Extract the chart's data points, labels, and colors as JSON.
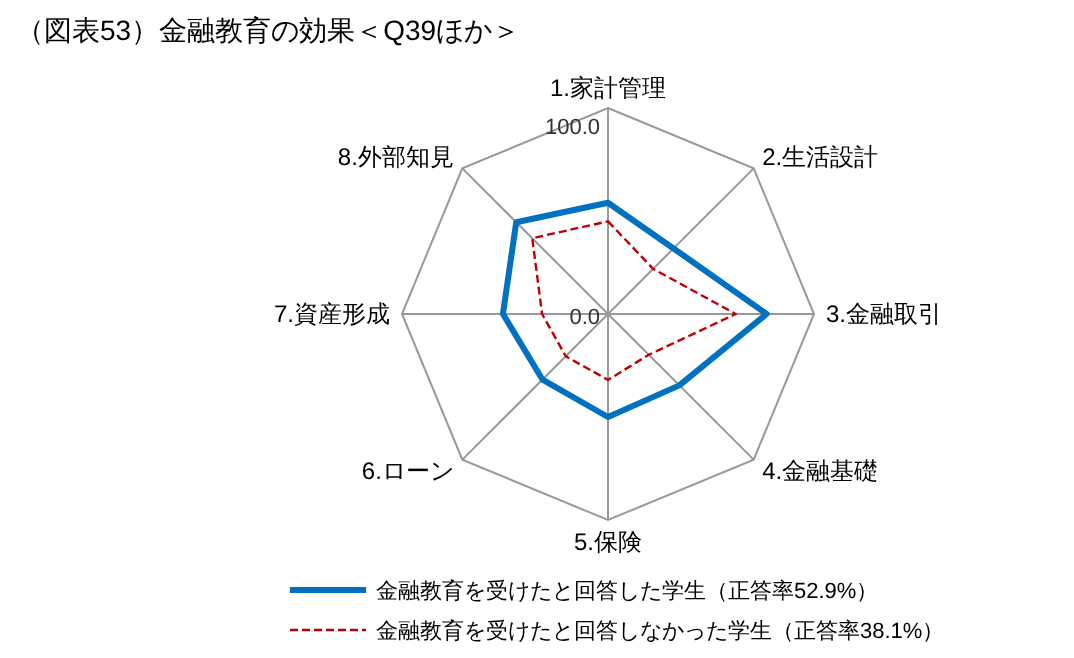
{
  "chart_data": {
    "type": "radar",
    "title": "（図表53）金融教育の効果＜Q39ほか＞",
    "categories": [
      "1.家計管理",
      "2.生活設計",
      "3.金融取引",
      "4.金融基礎",
      "5.保険",
      "6.ローン",
      "7.資産形成",
      "8.外部知見"
    ],
    "series": [
      {
        "name": "金融教育を受けたと回答した学生（正答率52.9%）",
        "color": "#0070c0",
        "line_style": "solid",
        "values": [
          54,
          45,
          77,
          49,
          50,
          45,
          51,
          63
        ]
      },
      {
        "name": "金融教育を受けたと回答しなかった学生（正答率38.1%）",
        "color": "#c00000",
        "line_style": "dashed",
        "values": [
          45,
          31,
          62,
          28,
          32,
          29,
          32,
          52
        ]
      }
    ],
    "ylim": [
      0,
      100
    ],
    "yticks": [
      {
        "value": 0,
        "label": "0.0"
      },
      {
        "value": 100,
        "label": "100.0"
      }
    ],
    "grid": true,
    "legend": "bottom",
    "marker": "none"
  }
}
